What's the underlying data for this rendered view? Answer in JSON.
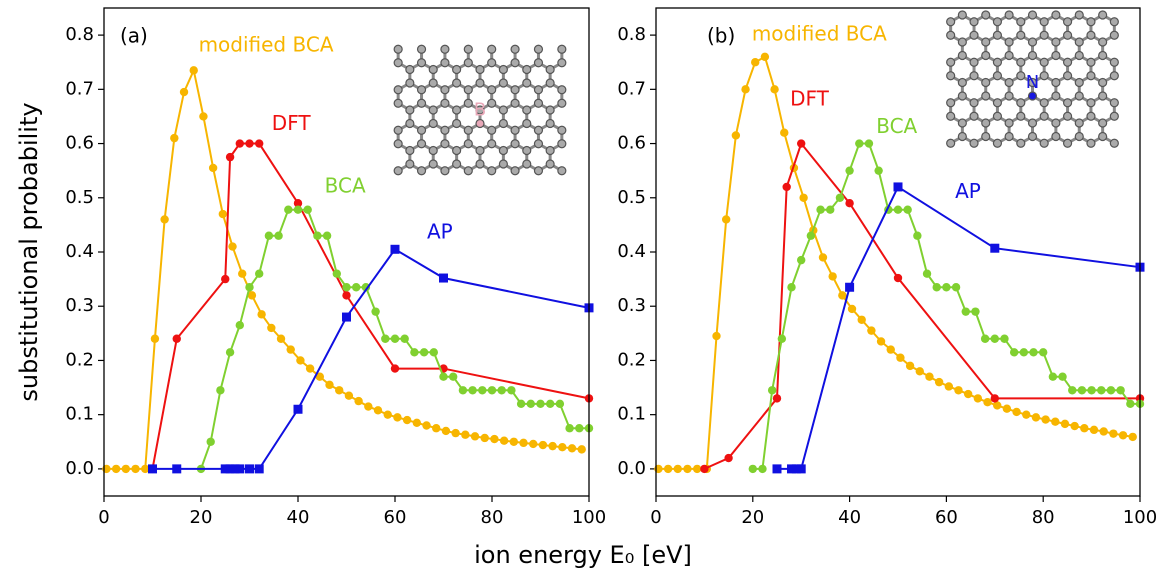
{
  "xlabel": "ion energy E₀ [eV]",
  "ylabel": "substitutional probability",
  "chart_data": [
    {
      "type": "line",
      "panel_label": "(a)",
      "inset_label": "B",
      "xlim": [
        0,
        100
      ],
      "ylim": [
        -0.05,
        0.85
      ],
      "xticks": [
        0,
        20,
        40,
        60,
        80,
        100
      ],
      "yticks": [
        {
          "value": 0,
          "label": "0.0"
        },
        0.1,
        0.2,
        0.3,
        0.4,
        0.5,
        0.6,
        0.7,
        0.8
      ],
      "series": [
        {
          "name": "modified BCA",
          "color": "#f7b500",
          "marker": "circle",
          "x": [
            0.5,
            2.5,
            4.5,
            6.5,
            8.5,
            10.5,
            12.5,
            14.5,
            16.5,
            18.5,
            20.5,
            22.5,
            24.5,
            26.5,
            28.5,
            30.5,
            32.5,
            34.5,
            36.5,
            38.5,
            40.5,
            42.5,
            44.5,
            46.5,
            48.5,
            50.5,
            52.5,
            54.5,
            56.5,
            58.5,
            60.5,
            62.5,
            64.5,
            66.5,
            68.5,
            70.5,
            72.5,
            74.5,
            76.5,
            78.5,
            80.5,
            82.5,
            84.5,
            86.5,
            88.5,
            90.5,
            92.5,
            94.5,
            96.5,
            98.5
          ],
          "values": [
            0,
            0,
            0,
            0,
            0,
            0.24,
            0.46,
            0.61,
            0.695,
            0.735,
            0.65,
            0.555,
            0.47,
            0.41,
            0.36,
            0.32,
            0.285,
            0.26,
            0.24,
            0.22,
            0.2,
            0.185,
            0.17,
            0.155,
            0.145,
            0.135,
            0.125,
            0.115,
            0.108,
            0.1,
            0.095,
            0.09,
            0.085,
            0.08,
            0.075,
            0.07,
            0.066,
            0.063,
            0.06,
            0.057,
            0.055,
            0.052,
            0.05,
            0.048,
            0.046,
            0.044,
            0.042,
            0.04,
            0.038,
            0.036
          ]
        },
        {
          "name": "DFT",
          "color": "#ee1111",
          "marker": "circle",
          "x": [
            10,
            15,
            25,
            26,
            28,
            30,
            32,
            40,
            50,
            60,
            70,
            100
          ],
          "values": [
            0,
            0.24,
            0.35,
            0.575,
            0.6,
            0.6,
            0.6,
            0.49,
            0.32,
            0.185,
            0.185,
            0.13
          ]
        },
        {
          "name": "BCA",
          "color": "#80d030",
          "marker": "circle",
          "x": [
            20,
            22,
            24,
            26,
            28,
            30,
            32,
            34,
            36,
            38,
            40,
            42,
            44,
            46,
            48,
            50,
            52,
            54,
            56,
            58,
            60,
            62,
            64,
            66,
            68,
            70,
            72,
            74,
            76,
            78,
            80,
            82,
            84,
            86,
            88,
            90,
            92,
            94,
            96,
            98,
            100
          ],
          "values": [
            0,
            0.05,
            0.145,
            0.215,
            0.265,
            0.335,
            0.36,
            0.43,
            0.43,
            0.478,
            0.478,
            0.478,
            0.43,
            0.43,
            0.36,
            0.335,
            0.335,
            0.335,
            0.29,
            0.24,
            0.24,
            0.24,
            0.215,
            0.215,
            0.215,
            0.17,
            0.17,
            0.145,
            0.145,
            0.145,
            0.145,
            0.145,
            0.145,
            0.12,
            0.12,
            0.12,
            0.12,
            0.12,
            0.075,
            0.075,
            0.075
          ]
        },
        {
          "name": "AP",
          "color": "#1010e0",
          "marker": "square",
          "x": [
            10,
            15,
            25,
            26,
            27,
            28,
            30,
            32,
            40,
            50,
            60,
            70,
            100
          ],
          "values": [
            0,
            0,
            0,
            0,
            0,
            0,
            0,
            0,
            0.11,
            0.28,
            0.405,
            0.352,
            0.297
          ]
        }
      ]
    },
    {
      "type": "line",
      "panel_label": "(b)",
      "inset_label": "N",
      "xlim": [
        0,
        100
      ],
      "ylim": [
        -0.05,
        0.85
      ],
      "xticks": [
        0,
        20,
        40,
        60,
        80,
        100
      ],
      "yticks": [
        {
          "value": 0,
          "label": "0.0"
        },
        0.1,
        0.2,
        0.3,
        0.4,
        0.5,
        0.6,
        0.7,
        0.8
      ],
      "series": [
        {
          "name": "modified BCA",
          "color": "#f7b500",
          "marker": "circle",
          "x": [
            0.5,
            2.5,
            4.5,
            6.5,
            8.5,
            10.5,
            12.5,
            14.5,
            16.5,
            18.5,
            20.5,
            22.5,
            24.5,
            26.5,
            28.5,
            30.5,
            32.5,
            34.5,
            36.5,
            38.5,
            40.5,
            42.5,
            44.5,
            46.5,
            48.5,
            50.5,
            52.5,
            54.5,
            56.5,
            58.5,
            60.5,
            62.5,
            64.5,
            66.5,
            68.5,
            70.5,
            72.5,
            74.5,
            76.5,
            78.5,
            80.5,
            82.5,
            84.5,
            86.5,
            88.5,
            90.5,
            92.5,
            94.5,
            96.5,
            98.5
          ],
          "values": [
            0,
            0,
            0,
            0,
            0,
            0,
            0.245,
            0.46,
            0.615,
            0.7,
            0.75,
            0.76,
            0.7,
            0.62,
            0.555,
            0.5,
            0.44,
            0.39,
            0.355,
            0.32,
            0.295,
            0.275,
            0.255,
            0.235,
            0.22,
            0.205,
            0.19,
            0.18,
            0.17,
            0.16,
            0.152,
            0.145,
            0.138,
            0.13,
            0.123,
            0.117,
            0.111,
            0.105,
            0.1,
            0.095,
            0.091,
            0.087,
            0.083,
            0.079,
            0.075,
            0.072,
            0.069,
            0.065,
            0.062,
            0.059
          ]
        },
        {
          "name": "DFT",
          "color": "#ee1111",
          "marker": "circle",
          "x": [
            10,
            15,
            25,
            27,
            30,
            40,
            50,
            70,
            100
          ],
          "values": [
            0,
            0.02,
            0.13,
            0.52,
            0.6,
            0.49,
            0.352,
            0.13,
            0.13
          ]
        },
        {
          "name": "BCA",
          "color": "#80d030",
          "marker": "circle",
          "x": [
            20,
            22,
            24,
            26,
            28,
            30,
            32,
            34,
            36,
            38,
            40,
            42,
            44,
            46,
            48,
            50,
            52,
            54,
            56,
            58,
            60,
            62,
            64,
            66,
            68,
            70,
            72,
            74,
            76,
            78,
            80,
            82,
            84,
            86,
            88,
            90,
            92,
            94,
            96,
            98,
            100
          ],
          "values": [
            0,
            0,
            0.145,
            0.24,
            0.335,
            0.385,
            0.43,
            0.478,
            0.478,
            0.5,
            0.55,
            0.6,
            0.6,
            0.55,
            0.478,
            0.478,
            0.478,
            0.43,
            0.36,
            0.335,
            0.335,
            0.335,
            0.29,
            0.29,
            0.24,
            0.24,
            0.24,
            0.215,
            0.215,
            0.215,
            0.215,
            0.17,
            0.17,
            0.145,
            0.145,
            0.145,
            0.145,
            0.145,
            0.145,
            0.12,
            0.12
          ]
        },
        {
          "name": "AP",
          "color": "#1010e0",
          "marker": "square",
          "x": [
            25,
            28,
            29,
            30,
            40,
            50,
            70,
            100
          ],
          "values": [
            0,
            0,
            0,
            0,
            0.335,
            0.52,
            0.407,
            0.372
          ]
        }
      ]
    }
  ]
}
